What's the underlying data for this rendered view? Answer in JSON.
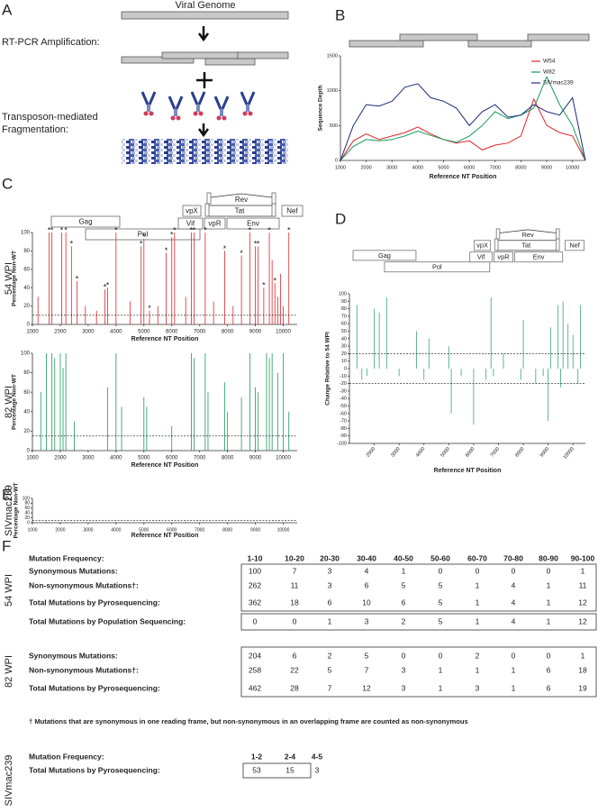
{
  "panels": [
    "A",
    "B",
    "C",
    "D",
    "E",
    "F"
  ],
  "panel_a": {
    "title": "Viral Genome",
    "steps": [
      "RT-PCR Amplification:",
      "Transposon-mediated",
      "Fragmentation:"
    ]
  },
  "genome_map": [
    "Gag",
    "Pol",
    "Vif",
    "vpX",
    "vpR",
    "Tat",
    "Rev",
    "Env",
    "Nef"
  ],
  "chart_data": [
    {
      "type": "line",
      "x_label": "Reference NT Position",
      "y_label": "Sequence Depth",
      "xlim": [
        1000,
        10500
      ],
      "ylim": [
        0,
        1500
      ],
      "xticks": [
        1000,
        2000,
        3000,
        4000,
        5000,
        6000,
        7000,
        8000,
        9000,
        10000
      ],
      "yticks": [
        0,
        500,
        1000,
        1500
      ],
      "x": [
        1000,
        1500,
        2000,
        2500,
        3000,
        3500,
        4000,
        4500,
        5000,
        5500,
        6000,
        6500,
        7000,
        7500,
        8000,
        8500,
        9000,
        9500,
        10000,
        10500
      ],
      "legend": "upper right",
      "series": [
        {
          "name": "W54",
          "color": "#e0242a",
          "values": [
            0,
            280,
            380,
            300,
            350,
            400,
            480,
            380,
            300,
            250,
            280,
            150,
            220,
            250,
            350,
            880,
            500,
            400,
            350,
            0
          ]
        },
        {
          "name": "W82",
          "color": "#1a9a5a",
          "values": [
            0,
            200,
            300,
            280,
            300,
            350,
            420,
            360,
            300,
            260,
            350,
            500,
            700,
            600,
            650,
            750,
            1200,
            800,
            500,
            0
          ]
        },
        {
          "name": "SIVmac239",
          "color": "#1c2a7a",
          "values": [
            0,
            500,
            800,
            780,
            850,
            1050,
            1100,
            900,
            850,
            750,
            500,
            700,
            800,
            620,
            650,
            800,
            700,
            650,
            900,
            0
          ]
        }
      ]
    },
    {
      "type": "bar",
      "row_label": "54 WPI",
      "x_label": "Reference NT Position",
      "y_label": "Percentage Non-WT",
      "xlim": [
        1000,
        10500
      ],
      "ylim": [
        0,
        100
      ],
      "xticks": [
        1000,
        2000,
        3000,
        4000,
        5000,
        6000,
        7000,
        8000,
        9000,
        10000
      ],
      "yticks": [
        0,
        20,
        40,
        60,
        80,
        100
      ],
      "color": "#e0242a",
      "thresholds": [
        10
      ],
      "x": [
        1200,
        1600,
        1700,
        2050,
        2200,
        2400,
        2600,
        2900,
        3300,
        3600,
        3700,
        4000,
        4500,
        4900,
        5000,
        5200,
        5500,
        5800,
        6000,
        6100,
        6500,
        6700,
        6800,
        7200,
        7500,
        7900,
        8200,
        8500,
        8800,
        9000,
        9100,
        9300,
        9500,
        9600,
        9700,
        9800,
        9900,
        10000,
        10200
      ],
      "values": [
        30,
        100,
        100,
        100,
        100,
        85,
        47,
        20,
        15,
        38,
        40,
        100,
        25,
        85,
        93,
        15,
        20,
        78,
        95,
        100,
        30,
        100,
        100,
        100,
        25,
        80,
        20,
        75,
        100,
        85,
        85,
        40,
        100,
        70,
        45,
        30,
        55,
        20,
        100
      ],
      "annotations": [
        {
          "x": 1600,
          "y": 100,
          "text": "*"
        },
        {
          "x": 1700,
          "y": 100,
          "text": "*"
        },
        {
          "x": 2050,
          "y": 100,
          "text": "*"
        },
        {
          "x": 2200,
          "y": 100,
          "text": "*"
        },
        {
          "x": 2400,
          "y": 85,
          "text": "*"
        },
        {
          "x": 2600,
          "y": 47,
          "text": "*"
        },
        {
          "x": 3600,
          "y": 38,
          "text": "*"
        },
        {
          "x": 3700,
          "y": 40,
          "text": "*"
        },
        {
          "x": 4000,
          "y": 100,
          "text": "*"
        },
        {
          "x": 4900,
          "y": 85,
          "text": "*"
        },
        {
          "x": 5000,
          "y": 93,
          "text": "*"
        },
        {
          "x": 5200,
          "y": 15,
          "text": "*"
        },
        {
          "x": 5800,
          "y": 78,
          "text": "*"
        },
        {
          "x": 6000,
          "y": 95,
          "text": "*"
        },
        {
          "x": 6100,
          "y": 100,
          "text": "*"
        },
        {
          "x": 6700,
          "y": 100,
          "text": "*"
        },
        {
          "x": 6800,
          "y": 100,
          "text": "*"
        },
        {
          "x": 7200,
          "y": 100,
          "text": "*"
        },
        {
          "x": 7900,
          "y": 80,
          "text": "*"
        },
        {
          "x": 8500,
          "y": 75,
          "text": "*"
        },
        {
          "x": 8800,
          "y": 100,
          "text": "*"
        },
        {
          "x": 9000,
          "y": 85,
          "text": "*"
        },
        {
          "x": 9100,
          "y": 85,
          "text": "*"
        },
        {
          "x": 9300,
          "y": 40,
          "text": "*"
        },
        {
          "x": 9500,
          "y": 100,
          "text": "*"
        },
        {
          "x": 9700,
          "y": 45,
          "text": "*"
        },
        {
          "x": 10200,
          "y": 100,
          "text": "*"
        }
      ]
    },
    {
      "type": "bar",
      "row_label": "82 WPI",
      "x_label": "Reference NT Position",
      "y_label": "Percentage Non-WT",
      "xlim": [
        1000,
        10500
      ],
      "ylim": [
        0,
        100
      ],
      "xticks": [
        1000,
        2000,
        3000,
        4000,
        5000,
        6000,
        7000,
        8000,
        9000,
        10000
      ],
      "yticks": [
        0,
        20,
        40,
        60,
        80,
        100
      ],
      "color": "#1a9a5a",
      "thresholds": [
        15
      ],
      "x": [
        1300,
        1500,
        1700,
        1800,
        2000,
        2100,
        2200,
        2500,
        3700,
        4000,
        4200,
        5000,
        5100,
        6000,
        6700,
        6800,
        7200,
        7300,
        7900,
        8000,
        8500,
        8800,
        9000,
        9100,
        9400,
        9500,
        9600,
        9800,
        10000,
        10200
      ],
      "values": [
        60,
        100,
        100,
        95,
        100,
        85,
        100,
        30,
        65,
        100,
        45,
        55,
        45,
        25,
        100,
        95,
        100,
        60,
        70,
        40,
        55,
        100,
        65,
        60,
        100,
        95,
        100,
        80,
        100,
        40
      ]
    },
    {
      "type": "bar",
      "x_label": "Reference NT Position",
      "y_label": "Change Relative to 54 WPI",
      "xlim": [
        1000,
        10500
      ],
      "ylim": [
        -100,
        100
      ],
      "xticks": [
        2000,
        3000,
        4000,
        5000,
        6000,
        7000,
        8000,
        9000,
        10000
      ],
      "yticks": [
        -100,
        -90,
        -80,
        -70,
        -60,
        -50,
        -40,
        -30,
        -20,
        -10,
        0,
        10,
        20,
        30,
        40,
        50,
        60,
        70,
        80,
        90,
        100
      ],
      "color": "#3aa57a",
      "thresholds": [
        20,
        -20
      ],
      "x": [
        1300,
        1500,
        1700,
        2000,
        2200,
        2500,
        3000,
        3700,
        4000,
        4200,
        5000,
        5100,
        5500,
        6000,
        6500,
        6700,
        6800,
        7200,
        7900,
        8000,
        8500,
        8800,
        9000,
        9100,
        9400,
        9500,
        9600,
        9800,
        10000,
        10200,
        10300
      ],
      "values": [
        85,
        -15,
        -10,
        80,
        75,
        95,
        -10,
        50,
        -15,
        40,
        30,
        -60,
        -10,
        -75,
        -15,
        95,
        -10,
        20,
        -15,
        65,
        -20,
        -10,
        -70,
        55,
        85,
        -25,
        90,
        60,
        45,
        -20,
        85
      ]
    },
    {
      "type": "bar",
      "row_label": "SIVmac239",
      "x_label": "Reference NT Position",
      "y_label": "Percentage Non-WT",
      "xlim": [
        1000,
        10500
      ],
      "ylim": [
        0,
        100
      ],
      "xticks": [
        1000,
        2000,
        3000,
        4000,
        5000,
        6000,
        7000,
        8000,
        9000,
        10000
      ],
      "yticks": [
        0,
        20,
        40,
        60,
        80,
        100
      ],
      "color": "#1c2a7a",
      "thresholds": [
        10
      ],
      "x": [
        1500,
        2500,
        4000,
        5200,
        6500,
        7200,
        8600,
        9500,
        10100
      ],
      "values": [
        3,
        2,
        3,
        2,
        3,
        2,
        2,
        3,
        2
      ]
    }
  ],
  "table": {
    "header": {
      "label": "Mutation Frequency:",
      "columns": [
        "1-10",
        "10-20",
        "20-30",
        "30-40",
        "40-50",
        "50-60",
        "60-70",
        "70-80",
        "80-90",
        "90-100"
      ]
    },
    "groups": [
      {
        "name": "54 WPI",
        "blocks": [
          [
            {
              "label": "Synonymous Mutations:",
              "values": [
                100,
                7,
                3,
                4,
                1,
                0,
                0,
                0,
                0,
                1
              ]
            },
            {
              "label": "Non-synonymous Mutations†:",
              "values": [
                262,
                11,
                3,
                6,
                5,
                5,
                1,
                4,
                1,
                11
              ]
            },
            {
              "label": "Total Mutations by Pyrosequencing:",
              "values": [
                362,
                18,
                6,
                10,
                6,
                5,
                1,
                4,
                1,
                12
              ]
            }
          ],
          [
            {
              "label": "Total Mutations by Population Sequencing:",
              "values": [
                0,
                0,
                1,
                3,
                2,
                5,
                1,
                4,
                1,
                12
              ]
            }
          ]
        ]
      },
      {
        "name": "82 WPI",
        "blocks": [
          [
            {
              "label": "Synonymous Mutations:",
              "values": [
                204,
                6,
                2,
                5,
                0,
                0,
                2,
                0,
                0,
                1
              ]
            },
            {
              "label": "Non-synonymous Mutations†:",
              "values": [
                258,
                22,
                5,
                7,
                3,
                1,
                1,
                1,
                6,
                18
              ]
            },
            {
              "label": "Total Mutations by Pyrosequencing:",
              "values": [
                462,
                28,
                7,
                12,
                3,
                1,
                3,
                1,
                6,
                19
              ]
            }
          ]
        ]
      },
      {
        "name": "SIVmac239",
        "header": {
          "label": "Mutation Frequency:",
          "columns": [
            "1-2",
            "2-4",
            "4-5"
          ]
        },
        "blocks": [
          [
            {
              "label": "Total Mutations by Pyrosequencing:",
              "values": [
                53,
                15,
                3
              ]
            }
          ]
        ]
      }
    ],
    "footnote": "† Mutations that are synonymous in one reading frame, but non-synonymous in an overlapping frame are counted as non-synonymous"
  }
}
